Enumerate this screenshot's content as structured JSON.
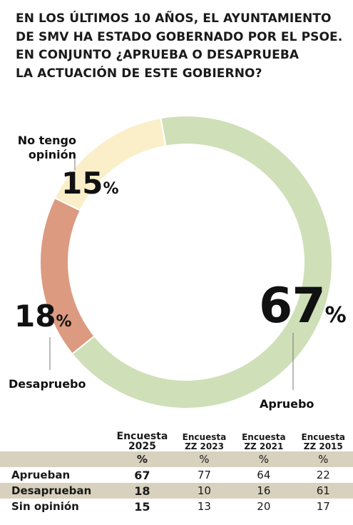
{
  "title_lines": [
    "EN LOS ÚLTIMOS 10 AÑOS, EL AYUNTAMIENTO",
    "DE SMV HA ESTADO GOBERNADO POR EL PSOE.",
    "EN CONJUNTO ¿APRUEBA O DESAPRUEBA",
    "LA ACTUACIÓN DE ESTE GOBIERNO?"
  ],
  "chart_data": {
    "type": "pie",
    "style": "donut",
    "title": "EN LOS ÚLTIMOS 10 AÑOS, EL AYUNTAMIENTO DE SMV HA ESTADO GOBERNADO POR EL PSOE. EN CONJUNTO ¿APRUEBA O DESAPRUEBA LA ACTUACIÓN DE ESTE GOBIERNO?",
    "slices": [
      {
        "label": "Apruebo",
        "value": 67,
        "value_label": "67",
        "color": "#cfdfb8"
      },
      {
        "label": "Desapruebo",
        "value": 18,
        "value_label": "18",
        "color": "#dc9a80"
      },
      {
        "label": "No tengo opinión",
        "value": 15,
        "value_label": "15",
        "color": "#faefc9"
      }
    ],
    "percent_sign": "%"
  },
  "table": {
    "columns": [
      {
        "top": "Encuesta",
        "bottom": "2025"
      },
      {
        "top": "Encuesta",
        "bottom": "ZZ 2023"
      },
      {
        "top": "Encuesta",
        "bottom": "ZZ 2021"
      },
      {
        "top": "Encuesta",
        "bottom": "ZZ 2015"
      }
    ],
    "unit": "%",
    "rows": [
      {
        "label": "Aprueban",
        "values": [
          "67",
          "77",
          "64",
          "22"
        ]
      },
      {
        "label": "Desaprueban",
        "values": [
          "18",
          "10",
          "16",
          "61"
        ]
      },
      {
        "label": "Sin opinión",
        "values": [
          "15",
          "13",
          "20",
          "17"
        ]
      }
    ],
    "shade_color": "#d8d1be"
  }
}
